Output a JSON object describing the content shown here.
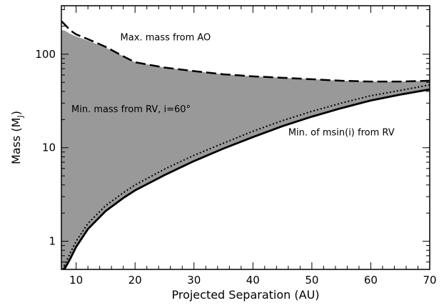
{
  "chart_data": {
    "type": "line",
    "xlabel": "Projected Separation (AU)",
    "ylabel": {
      "main": "Mass (M",
      "sub": "J",
      "close": ")"
    },
    "xlim": [
      7.5,
      70
    ],
    "ylim": [
      0.5,
      330
    ],
    "y_scale": "log",
    "x_ticks": [
      10,
      20,
      30,
      40,
      50,
      60,
      70
    ],
    "x_tick_labels": [
      "10",
      "20",
      "30",
      "40",
      "50",
      "60",
      "70"
    ],
    "y_ticks": [
      1,
      10,
      100
    ],
    "y_tick_labels": [
      "1",
      "10",
      "100"
    ],
    "grid": false,
    "fill_color": "#999999",
    "series": [
      {
        "name": "Max. mass from AO",
        "style": "dashed",
        "x": [
          7.5,
          8,
          9,
          10,
          12,
          15,
          18,
          20,
          25,
          30,
          35,
          40,
          45,
          50,
          55,
          60,
          65,
          70
        ],
        "y": [
          225,
          210,
          180,
          163,
          145,
          120,
          95,
          82,
          72,
          66,
          61,
          58,
          56,
          54,
          52,
          51,
          51,
          52
        ]
      },
      {
        "name": "Min. mass from RV, i=60°",
        "style": "dotted",
        "x": [
          7.8,
          8,
          9,
          10,
          12,
          15,
          18,
          20,
          25,
          30,
          35,
          40,
          45,
          50,
          55,
          60,
          65,
          70
        ],
        "y": [
          0.5,
          0.55,
          0.75,
          1.0,
          1.55,
          2.4,
          3.3,
          4.0,
          5.9,
          8.3,
          11.2,
          15.0,
          19.5,
          24.5,
          30.0,
          36.0,
          41.0,
          47.0
        ]
      },
      {
        "name": "Min. of msin(i) from RV",
        "style": "solid",
        "x": [
          8.0,
          9,
          10,
          12,
          15,
          18,
          20,
          25,
          30,
          35,
          40,
          45,
          50,
          55,
          60,
          65,
          70
        ],
        "y": [
          0.5,
          0.65,
          0.87,
          1.35,
          2.1,
          2.9,
          3.5,
          5.1,
          7.2,
          9.8,
          13.0,
          17.0,
          21.5,
          26.5,
          32.0,
          37.0,
          42.0
        ]
      }
    ],
    "fill_upper": {
      "x": [
        7.5,
        8,
        9,
        10,
        12,
        15,
        18,
        20,
        25,
        30,
        35,
        40,
        45,
        50,
        55,
        60,
        65,
        70
      ],
      "y": [
        180,
        180,
        165,
        155,
        140,
        118,
        95,
        82,
        72,
        66,
        61,
        58,
        56,
        54,
        52,
        51,
        51,
        52
      ]
    },
    "annotations": [
      {
        "text": "Max. mass from AO",
        "x": 17.5,
        "y": 140
      },
      {
        "text": "Min. mass from RV, i=60°",
        "x": 9.2,
        "y": 24
      },
      {
        "text": "Min. of msin(i) from RV",
        "x": 46,
        "y": 13.5
      }
    ]
  }
}
